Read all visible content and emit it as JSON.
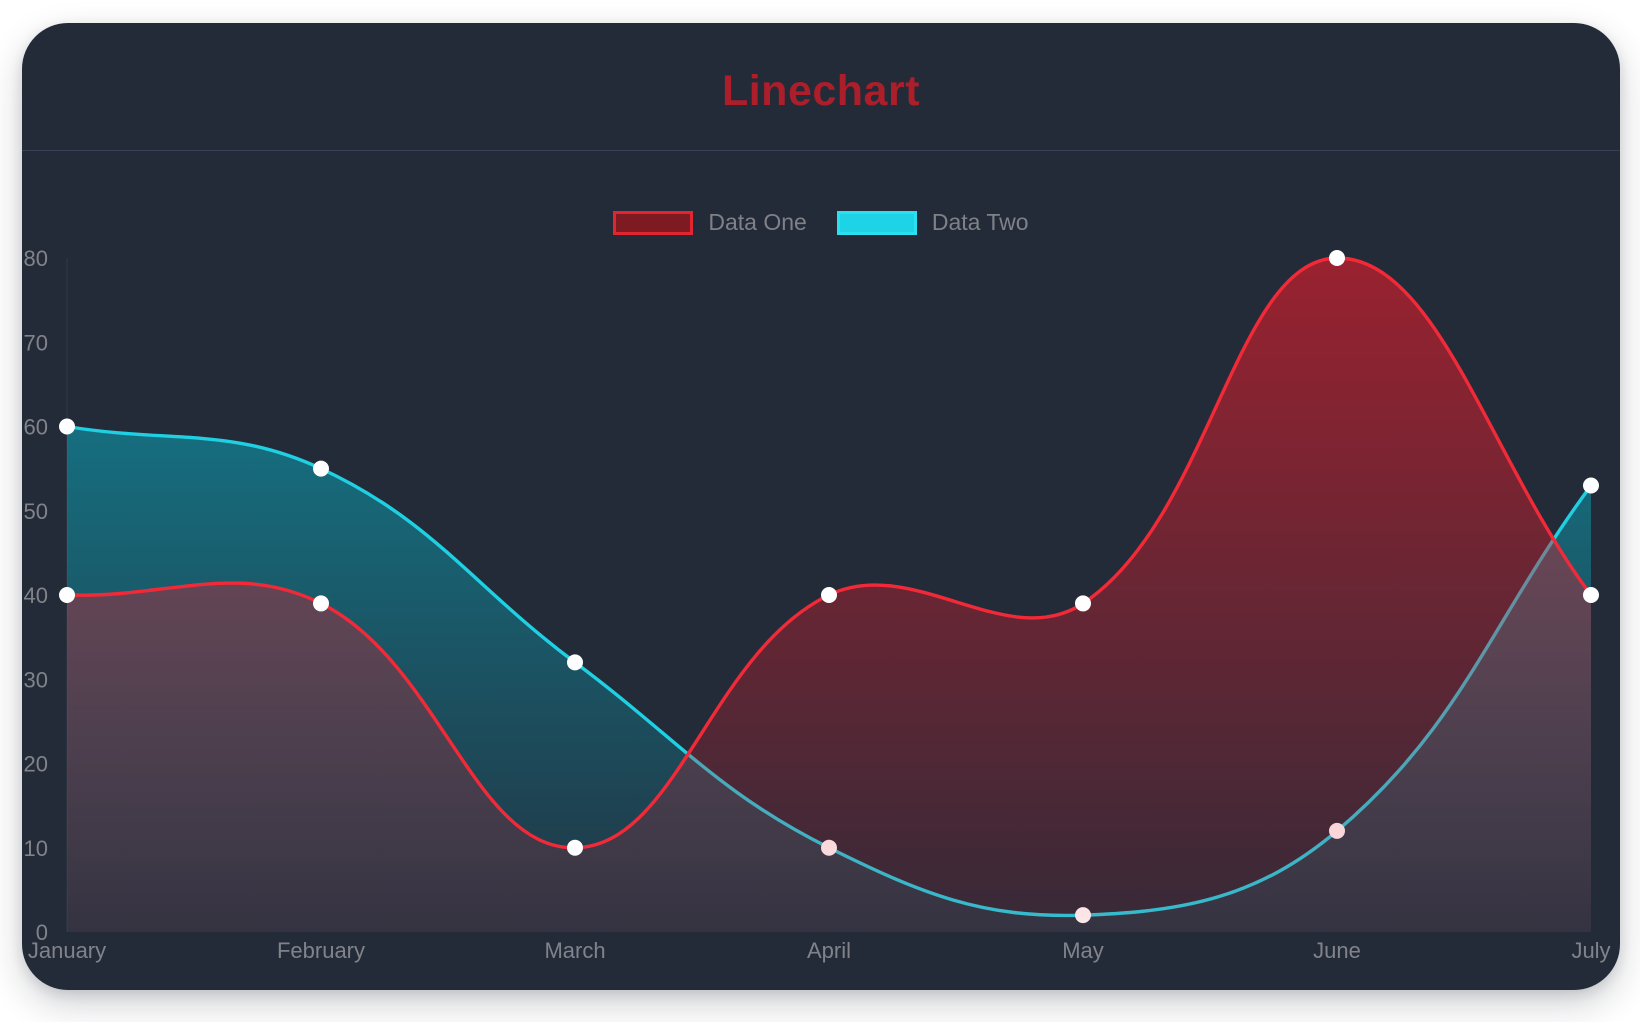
{
  "card": {
    "title": "Linechart",
    "title_color": "#ab1e2a",
    "background": "#232b39",
    "divider_color": "#394156"
  },
  "legend": {
    "text_color": "#7f8187",
    "items": [
      {
        "label": "Data One",
        "swatch_fill": "#7e1a22",
        "swatch_border": "#e32532"
      },
      {
        "label": "Data Two",
        "swatch_fill": "#1fd3e6",
        "swatch_border": "#2adfee"
      }
    ]
  },
  "chart_data": {
    "type": "line",
    "title": "Linechart",
    "categories": [
      "January",
      "February",
      "March",
      "April",
      "May",
      "June",
      "July"
    ],
    "series": [
      {
        "name": "Data One",
        "values": [
          40,
          39,
          10,
          40,
          39,
          80,
          40
        ],
        "line_color": "#f22a38",
        "fill_top": "rgba(226,28,42,0.62)",
        "fill_bottom": "rgba(226,28,42,0.10)"
      },
      {
        "name": "Data Two",
        "values": [
          60,
          55,
          32,
          10,
          2,
          12,
          53
        ],
        "line_color": "#1fd0e2",
        "fill_top": "rgba(0,215,236,0.50)",
        "fill_bottom": "rgba(0,215,236,0.06)"
      }
    ],
    "ylim": [
      0,
      80
    ],
    "yticks": [
      0,
      10,
      20,
      30,
      40,
      50,
      60,
      70,
      80
    ],
    "xlabel": "",
    "ylabel": "",
    "grid": false,
    "legend_position": "top",
    "curve_tension": 0.4,
    "point_color": "#ffffff",
    "axis_text_color": "#82838a",
    "axis_line_color": "rgba(255,255,255,0.07)"
  }
}
